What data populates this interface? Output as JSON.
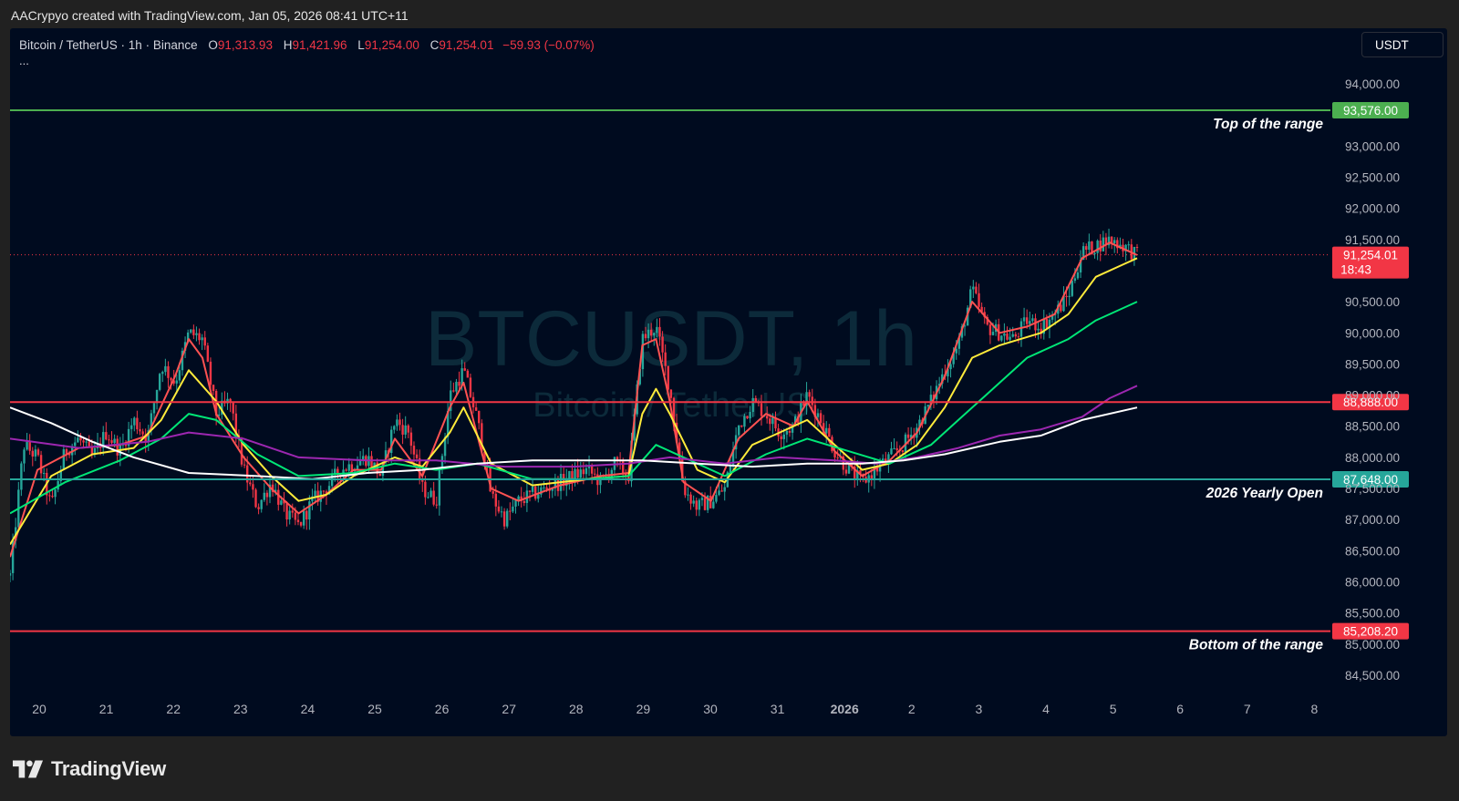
{
  "header": {
    "credit": "AACrypyo created with TradingView.com, Jan 05, 2026 08:41 UTC+11"
  },
  "legend": {
    "symbol": "Bitcoin / TetherUS · 1h · Binance",
    "open_label": "O",
    "open": "91,313.93",
    "high_label": "H",
    "high": "91,421.96",
    "low_label": "L",
    "low": "91,254.00",
    "close_label": "C",
    "close": "91,254.01",
    "change": "−59.93 (−0.07%)",
    "more": "..."
  },
  "currency": "USDT",
  "watermark": {
    "ticker": "BTCUSDT, 1h",
    "name": "Bitcoin / TetherUS"
  },
  "footer": {
    "brand": "TradingView"
  },
  "colors": {
    "background": "#000b1f",
    "up": "#26a69a",
    "down": "#f23645",
    "top_line": "#4caf50",
    "open_line": "#26a69a",
    "bottom_line": "#f23645",
    "ema_fast": "#ff5252",
    "ema_yellow": "#ffeb3b",
    "ema_green": "#00e676",
    "ema_purple": "#9c27b0",
    "ema_white": "#ffffff"
  },
  "chart_data": {
    "type": "candlestick",
    "ylim": [
      84000,
      94600
    ],
    "x_ticks": [
      "20",
      "21",
      "22",
      "23",
      "24",
      "25",
      "26",
      "27",
      "28",
      "29",
      "30",
      "31",
      "2026",
      "2",
      "3",
      "4",
      "5",
      "6",
      "7",
      "8"
    ],
    "y_ticks": [
      "94,000.00",
      "93,000.00",
      "92,500.00",
      "92,000.00",
      "91,500.00",
      "90,500.00",
      "90,000.00",
      "89,500.00",
      "89,000.00",
      "88,500.00",
      "88,000.00",
      "87,500.00",
      "87,000.00",
      "86,500.00",
      "86,000.00",
      "85,500.00",
      "85,000.00",
      "84,500.00"
    ],
    "y_tick_values": [
      94000,
      93000,
      92500,
      92000,
      91500,
      90500,
      90000,
      89500,
      89000,
      88500,
      88000,
      87500,
      87000,
      86500,
      86000,
      85500,
      85000,
      84500
    ],
    "levels": [
      {
        "label": "Top of the range",
        "value": 93576,
        "price": "93,576.00",
        "color": "#4caf50"
      },
      {
        "label": "",
        "value": 88888,
        "price": "88,888.00",
        "color": "#f23645"
      },
      {
        "label": "2026 Yearly Open",
        "value": 87648,
        "price": "87,648.00",
        "color": "#26a69a"
      },
      {
        "label": "Bottom of the range",
        "value": 85208.2,
        "price": "85,208.20",
        "color": "#f23645"
      }
    ],
    "last_price": {
      "value": 91254.01,
      "price": "91,254.01",
      "countdown": "18:43"
    },
    "price_path": [
      [
        0,
        86100
      ],
      [
        1,
        88200
      ],
      [
        2,
        88000
      ],
      [
        3,
        87200
      ],
      [
        4,
        88100
      ],
      [
        5,
        88300
      ],
      [
        6,
        88000
      ],
      [
        7,
        88400
      ],
      [
        8,
        88100
      ],
      [
        9,
        88600
      ],
      [
        10,
        88300
      ],
      [
        11,
        89500
      ],
      [
        12,
        89200
      ],
      [
        13,
        90000
      ],
      [
        14,
        89900
      ],
      [
        15,
        88700
      ],
      [
        16,
        88900
      ],
      [
        17,
        87800
      ],
      [
        18,
        87200
      ],
      [
        19,
        87600
      ],
      [
        20,
        87100
      ],
      [
        21,
        86900
      ],
      [
        22,
        87300
      ],
      [
        23,
        87500
      ],
      [
        24,
        87800
      ],
      [
        25,
        87900
      ],
      [
        26,
        88000
      ],
      [
        27,
        87700
      ],
      [
        28,
        88600
      ],
      [
        29,
        88400
      ],
      [
        30,
        87500
      ],
      [
        31,
        87300
      ],
      [
        32,
        89000
      ],
      [
        33,
        89400
      ],
      [
        34,
        88600
      ],
      [
        35,
        87400
      ],
      [
        36,
        87000
      ],
      [
        37,
        87300
      ],
      [
        38,
        87400
      ],
      [
        39,
        87500
      ],
      [
        40,
        87600
      ],
      [
        41,
        87700
      ],
      [
        42,
        87800
      ],
      [
        43,
        87600
      ],
      [
        44,
        87900
      ],
      [
        45,
        87700
      ],
      [
        46,
        89900
      ],
      [
        47,
        90100
      ],
      [
        48,
        89100
      ],
      [
        49,
        87500
      ],
      [
        50,
        87200
      ],
      [
        51,
        87300
      ],
      [
        52,
        87500
      ],
      [
        53,
        88500
      ],
      [
        54,
        88900
      ],
      [
        55,
        88700
      ],
      [
        56,
        88400
      ],
      [
        57,
        88500
      ],
      [
        58,
        89000
      ],
      [
        59,
        88600
      ],
      [
        60,
        88100
      ],
      [
        61,
        87800
      ],
      [
        62,
        87600
      ],
      [
        63,
        87800
      ],
      [
        64,
        88000
      ],
      [
        65,
        88200
      ],
      [
        66,
        88500
      ],
      [
        67,
        88900
      ],
      [
        68,
        89400
      ],
      [
        69,
        89800
      ],
      [
        70,
        90700
      ],
      [
        71,
        90100
      ],
      [
        72,
        90000
      ],
      [
        73,
        89900
      ],
      [
        74,
        90200
      ],
      [
        75,
        90100
      ],
      [
        76,
        90300
      ],
      [
        77,
        90600
      ],
      [
        78,
        91300
      ],
      [
        79,
        91400
      ],
      [
        80,
        91500
      ],
      [
        81,
        91400
      ],
      [
        82,
        91250
      ]
    ],
    "ema_series": [
      {
        "name": "",
        "color": "#ff5252",
        "values": [
          [
            0,
            86400
          ],
          [
            2,
            87800
          ],
          [
            5,
            88150
          ],
          [
            8,
            88200
          ],
          [
            10,
            88350
          ],
          [
            12,
            89300
          ],
          [
            13,
            89900
          ],
          [
            14,
            89600
          ],
          [
            15,
            88700
          ],
          [
            17,
            88000
          ],
          [
            19,
            87500
          ],
          [
            21,
            87100
          ],
          [
            23,
            87400
          ],
          [
            25,
            87800
          ],
          [
            27,
            87800
          ],
          [
            28,
            88300
          ],
          [
            30,
            87700
          ],
          [
            32,
            88800
          ],
          [
            33,
            89200
          ],
          [
            35,
            87500
          ],
          [
            37,
            87300
          ],
          [
            40,
            87550
          ],
          [
            43,
            87700
          ],
          [
            45,
            87750
          ],
          [
            46,
            89800
          ],
          [
            47,
            89900
          ],
          [
            48,
            88900
          ],
          [
            49,
            87600
          ],
          [
            51,
            87300
          ],
          [
            53,
            88300
          ],
          [
            55,
            88700
          ],
          [
            57,
            88500
          ],
          [
            58,
            88900
          ],
          [
            60,
            88100
          ],
          [
            62,
            87700
          ],
          [
            64,
            87950
          ],
          [
            66,
            88400
          ],
          [
            68,
            89300
          ],
          [
            70,
            90500
          ],
          [
            72,
            90000
          ],
          [
            74,
            90100
          ],
          [
            76,
            90300
          ],
          [
            78,
            91200
          ],
          [
            80,
            91450
          ],
          [
            82,
            91250
          ]
        ]
      },
      {
        "name": "",
        "color": "#ffeb3b",
        "values": [
          [
            0,
            86600
          ],
          [
            3,
            87700
          ],
          [
            6,
            88050
          ],
          [
            9,
            88150
          ],
          [
            11,
            88600
          ],
          [
            13,
            89400
          ],
          [
            15,
            88900
          ],
          [
            17,
            88200
          ],
          [
            19,
            87700
          ],
          [
            21,
            87300
          ],
          [
            23,
            87400
          ],
          [
            25,
            87700
          ],
          [
            28,
            88000
          ],
          [
            30,
            87850
          ],
          [
            32,
            88400
          ],
          [
            33,
            88800
          ],
          [
            35,
            87900
          ],
          [
            38,
            87550
          ],
          [
            42,
            87650
          ],
          [
            45,
            87700
          ],
          [
            46,
            88700
          ],
          [
            47,
            89100
          ],
          [
            48,
            88700
          ],
          [
            50,
            87800
          ],
          [
            52,
            87600
          ],
          [
            54,
            88200
          ],
          [
            56,
            88400
          ],
          [
            58,
            88600
          ],
          [
            60,
            88200
          ],
          [
            62,
            87800
          ],
          [
            64,
            87900
          ],
          [
            66,
            88200
          ],
          [
            68,
            88800
          ],
          [
            70,
            89600
          ],
          [
            72,
            89800
          ],
          [
            75,
            90000
          ],
          [
            77,
            90300
          ],
          [
            79,
            90900
          ],
          [
            81,
            91100
          ],
          [
            82,
            91200
          ]
        ]
      },
      {
        "name": "",
        "color": "#00e676",
        "values": [
          [
            0,
            87100
          ],
          [
            4,
            87600
          ],
          [
            8,
            87950
          ],
          [
            11,
            88300
          ],
          [
            13,
            88700
          ],
          [
            15,
            88600
          ],
          [
            18,
            88050
          ],
          [
            21,
            87700
          ],
          [
            25,
            87750
          ],
          [
            28,
            87900
          ],
          [
            31,
            87800
          ],
          [
            34,
            87900
          ],
          [
            38,
            87650
          ],
          [
            42,
            87650
          ],
          [
            45,
            87700
          ],
          [
            47,
            88200
          ],
          [
            49,
            88000
          ],
          [
            52,
            87700
          ],
          [
            55,
            88050
          ],
          [
            58,
            88300
          ],
          [
            61,
            88100
          ],
          [
            64,
            87900
          ],
          [
            67,
            88200
          ],
          [
            69,
            88600
          ],
          [
            71,
            89000
          ],
          [
            74,
            89600
          ],
          [
            77,
            89900
          ],
          [
            79,
            90200
          ],
          [
            82,
            90500
          ]
        ]
      },
      {
        "name": "",
        "color": "#9c27b0",
        "values": [
          [
            0,
            88300
          ],
          [
            5,
            88150
          ],
          [
            10,
            88250
          ],
          [
            13,
            88400
          ],
          [
            17,
            88300
          ],
          [
            21,
            88000
          ],
          [
            26,
            87950
          ],
          [
            31,
            87950
          ],
          [
            36,
            87850
          ],
          [
            41,
            87850
          ],
          [
            45,
            87900
          ],
          [
            48,
            88000
          ],
          [
            52,
            87900
          ],
          [
            56,
            88000
          ],
          [
            60,
            87950
          ],
          [
            63,
            87900
          ],
          [
            66,
            88000
          ],
          [
            69,
            88150
          ],
          [
            72,
            88350
          ],
          [
            75,
            88450
          ],
          [
            78,
            88650
          ],
          [
            80,
            88950
          ],
          [
            82,
            89150
          ]
        ]
      },
      {
        "name": "",
        "color": "#ffffff",
        "values": [
          [
            0,
            88800
          ],
          [
            3,
            88550
          ],
          [
            6,
            88250
          ],
          [
            9,
            88000
          ],
          [
            13,
            87750
          ],
          [
            18,
            87700
          ],
          [
            22,
            87650
          ],
          [
            26,
            87750
          ],
          [
            30,
            87800
          ],
          [
            34,
            87900
          ],
          [
            38,
            87950
          ],
          [
            42,
            87950
          ],
          [
            46,
            87950
          ],
          [
            50,
            87900
          ],
          [
            54,
            87850
          ],
          [
            58,
            87900
          ],
          [
            62,
            87900
          ],
          [
            65,
            87950
          ],
          [
            68,
            88050
          ],
          [
            72,
            88250
          ],
          [
            75,
            88350
          ],
          [
            78,
            88600
          ],
          [
            82,
            88800
          ]
        ]
      }
    ]
  }
}
